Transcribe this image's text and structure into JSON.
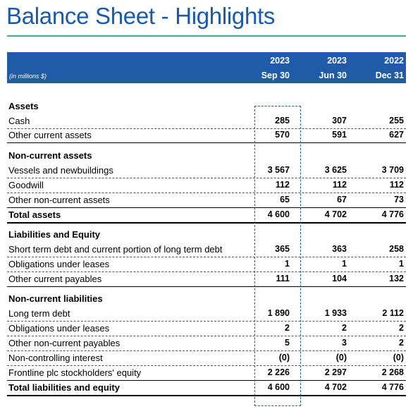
{
  "title": "Balance Sheet - Highlights",
  "header": {
    "units": "(in millions $)",
    "columns": [
      {
        "year": "2023",
        "period": "Sep 30"
      },
      {
        "year": "2023",
        "period": "Jun 30"
      },
      {
        "year": "2022",
        "period": "Dec 31"
      }
    ]
  },
  "sections": [
    {
      "heading": "Assets",
      "rows": [
        {
          "label": "Cash",
          "values": [
            "285",
            "307",
            "255"
          ]
        },
        {
          "label": "Other current assets",
          "values": [
            "570",
            "591",
            "627"
          ]
        }
      ]
    },
    {
      "heading": "Non-current assets",
      "rows": [
        {
          "label": "Vessels and newbuildings",
          "values": [
            "3 567",
            "3 625",
            "3 709"
          ]
        },
        {
          "label": "Goodwill",
          "values": [
            "112",
            "112",
            "112"
          ]
        },
        {
          "label": "Other non-current assets",
          "values": [
            "65",
            "67",
            "73"
          ]
        }
      ]
    },
    {
      "total": {
        "label": "Total assets",
        "values": [
          "4 600",
          "4 702",
          "4 776"
        ]
      }
    },
    {
      "heading": "Liabilities and Equity",
      "rows": [
        {
          "label": "Short term debt and current portion of long term debt",
          "values": [
            "365",
            "363",
            "258"
          ]
        },
        {
          "label": "Obligations under leases",
          "values": [
            "1",
            "1",
            "1"
          ]
        },
        {
          "label": "Other current payables",
          "values": [
            "111",
            "104",
            "132"
          ]
        }
      ]
    },
    {
      "heading": "Non-current liabilities",
      "rows": [
        {
          "label": "Long term debt",
          "values": [
            "1 890",
            "1 933",
            "2 112"
          ]
        },
        {
          "label": "Obligations under leases",
          "values": [
            "2",
            "2",
            "2"
          ]
        },
        {
          "label": "Other non-current payables",
          "values": [
            "5",
            "3",
            "2"
          ]
        },
        {
          "label": "Non-controlling interest",
          "values": [
            "(0)",
            "(0)",
            "(0)"
          ]
        },
        {
          "label": "Frontline plc stockholders' equity",
          "values": [
            "2 226",
            "2 297",
            "2 268"
          ]
        }
      ]
    },
    {
      "total": {
        "label": "Total liabilities and equity",
        "values": [
          "4 600",
          "4 702",
          "4 776"
        ]
      }
    }
  ]
}
